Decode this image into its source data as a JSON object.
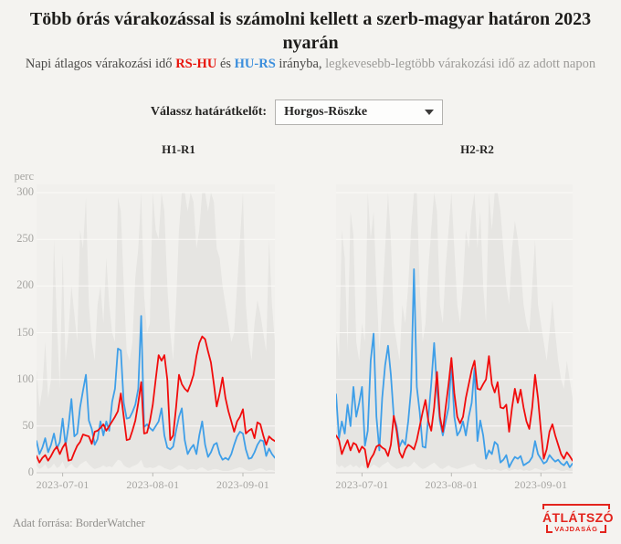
{
  "header": {
    "title": "Több órás várakozással is számolni kellett a szerb-magyar határon 2023 nyarán",
    "sub_prefix": "Napi átlagos várakozási idő ",
    "sub_rs_hu": "RS-HU",
    "sub_and": " és ",
    "sub_hu_rs": "HU-RS",
    "sub_direction": " irányba, ",
    "sub_gray": "legkevesebb-legtöbb várakozási idő az adott napon"
  },
  "controls": {
    "label": "Válassz határátkelőt:",
    "selected": "Horgos-Röszke"
  },
  "axes": {
    "y_unit": "perc",
    "y_ticks": [
      300,
      250,
      200,
      150,
      100,
      50,
      0
    ],
    "x_tick_labels": [
      "2023-07-01",
      "2023-08-01",
      "2023-09-01"
    ]
  },
  "footer": {
    "source": "Adat forrása: BorderWatcher",
    "logo_main": "ÁTLÁTSZÓ",
    "logo_sub": "VAJDASÁG"
  },
  "colors": {
    "red": "#f10c0c",
    "blue": "#3f9fe8",
    "subtitle_red": "#e8150d",
    "subtitle_blue": "#3b8edc",
    "band": "#e6e5e2",
    "plot_bg": "#f1f0ed",
    "grid": "#fbfaf7",
    "axis_line": "#d2d1ce",
    "tick": "#b9b8b5",
    "axis_text": "#a6a5a2",
    "page_bg": "#f4f3f0",
    "logo_red": "#e3241d"
  },
  "chart_data": [
    {
      "type": "line",
      "title": "H1-R1",
      "ylabel": "perc",
      "ylim": [
        0,
        300
      ],
      "grid": true,
      "legend_position": "none",
      "x_axis": {
        "tick_labels": [
          "2023-07-01",
          "2023-08-01",
          "2023-09-01"
        ],
        "tick_idx": [
          9,
          40,
          71
        ],
        "n_points": 83
      },
      "band": {
        "name": "legkevesebb-legtöbb várakozási idő (min-max sáv)",
        "min": [
          8,
          4,
          6,
          9,
          4,
          6,
          10,
          5,
          7,
          12,
          4,
          7,
          10,
          6,
          5,
          9,
          11,
          13,
          9,
          6,
          4,
          5,
          6,
          8,
          6,
          7,
          6,
          10,
          14,
          13,
          8,
          6,
          5,
          7,
          8,
          10,
          14,
          6,
          5,
          6,
          5,
          6,
          8,
          7,
          5,
          4,
          3,
          4,
          6,
          8,
          7,
          5,
          3,
          4,
          4,
          3,
          5,
          6,
          4,
          2,
          3,
          4,
          4,
          3,
          2,
          2,
          2,
          3,
          4,
          5,
          6,
          5,
          3,
          2,
          2,
          3,
          4,
          5,
          4,
          2,
          3,
          3,
          2
        ],
        "max": [
          110,
          70,
          90,
          140,
          80,
          100,
          250,
          160,
          90,
          235,
          120,
          150,
          200,
          170,
          140,
          260,
          240,
          295,
          180,
          140,
          120,
          180,
          200,
          160,
          230,
          180,
          150,
          140,
          295,
          280,
          200,
          130,
          120,
          140,
          210,
          240,
          300,
          190,
          150,
          160,
          300,
          260,
          250,
          300,
          280,
          200,
          150,
          120,
          180,
          260,
          300,
          300,
          280,
          300,
          290,
          240,
          260,
          300,
          300,
          280,
          300,
          290,
          240,
          230,
          200,
          180,
          160,
          140,
          150,
          200,
          250,
          300,
          180,
          140,
          120,
          160,
          185,
          170,
          150,
          130,
          250,
          180,
          140
        ]
      },
      "series": [
        {
          "name": "HU-RS átlag",
          "color_key": "blue",
          "values": [
            34,
            20,
            27,
            37,
            22,
            30,
            42,
            26,
            33,
            58,
            29,
            50,
            79,
            39,
            42,
            70,
            88,
            105,
            56,
            47,
            30,
            36,
            55,
            40,
            55,
            45,
            76,
            90,
            133,
            131,
            75,
            58,
            59,
            65,
            73,
            90,
            168,
            49,
            52,
            48,
            45,
            50,
            55,
            69,
            40,
            27,
            25,
            28,
            45,
            60,
            69,
            35,
            20,
            26,
            30,
            20,
            40,
            55,
            30,
            17,
            22,
            30,
            32,
            20,
            14,
            16,
            14,
            20,
            30,
            39,
            44,
            42,
            25,
            15,
            16,
            22,
            30,
            35,
            34,
            18,
            26,
            20,
            16
          ]
        },
        {
          "name": "RS-HU átlag",
          "color_key": "red",
          "values": [
            18,
            11,
            16,
            19,
            13,
            18,
            24,
            28,
            20,
            27,
            32,
            13,
            14,
            22,
            29,
            33,
            41,
            40,
            39,
            31,
            44,
            45,
            48,
            52,
            45,
            50,
            55,
            60,
            66,
            85,
            60,
            35,
            36,
            45,
            56,
            75,
            97,
            42,
            43,
            55,
            73,
            100,
            126,
            120,
            126,
            100,
            35,
            40,
            70,
            105,
            95,
            90,
            87,
            95,
            105,
            125,
            139,
            146,
            143,
            130,
            118,
            95,
            71,
            85,
            102,
            80,
            66,
            55,
            44,
            55,
            60,
            68,
            42,
            45,
            47,
            37,
            54,
            52,
            40,
            30,
            39,
            36,
            34
          ]
        }
      ]
    },
    {
      "type": "line",
      "title": "H2-R2",
      "ylabel": "perc",
      "ylim": [
        0,
        300
      ],
      "grid": true,
      "legend_position": "none",
      "x_axis": {
        "tick_labels": [
          "2023-07-01",
          "2023-08-01",
          "2023-09-01"
        ],
        "tick_idx": [
          9,
          40,
          71
        ],
        "n_points": 83
      },
      "band": {
        "name": "legkevesebb-legtöbb várakozási idő (min-max sáv)",
        "min": [
          10,
          6,
          8,
          5,
          7,
          9,
          6,
          8,
          5,
          8,
          5,
          3,
          6,
          9,
          7,
          5,
          8,
          10,
          12,
          8,
          6,
          4,
          5,
          6,
          7,
          6,
          8,
          12,
          9,
          6,
          4,
          5,
          7,
          9,
          11,
          8,
          5,
          4,
          6,
          8,
          6,
          5,
          4,
          5,
          6,
          7,
          8,
          9,
          10,
          6,
          5,
          4,
          3,
          4,
          3,
          4,
          3,
          2,
          3,
          4,
          2,
          3,
          4,
          3,
          4,
          2,
          3,
          2,
          3,
          5,
          4,
          3,
          2,
          3,
          4,
          5,
          4,
          3,
          2,
          2,
          3,
          2,
          2
        ],
        "max": [
          150,
          120,
          260,
          230,
          130,
          280,
          255,
          140,
          120,
          160,
          140,
          300,
          250,
          280,
          200,
          130,
          180,
          240,
          300,
          250,
          160,
          140,
          120,
          180,
          160,
          200,
          260,
          300,
          300,
          200,
          140,
          160,
          220,
          260,
          300,
          280,
          180,
          160,
          220,
          260,
          300,
          240,
          180,
          160,
          200,
          260,
          240,
          280,
          300,
          240,
          280,
          200,
          160,
          300,
          260,
          300,
          300,
          280,
          240,
          200,
          180,
          240,
          270,
          250,
          220,
          180,
          160,
          150,
          200,
          250,
          180,
          160,
          140,
          120,
          150,
          185,
          150,
          120,
          100,
          90,
          120,
          100,
          80
        ]
      },
      "series": [
        {
          "name": "HU-RS átlag",
          "color_key": "blue",
          "values": [
            84,
            37,
            55,
            42,
            73,
            50,
            92,
            60,
            75,
            92,
            29,
            45,
            120,
            149,
            60,
            24,
            80,
            115,
            136,
            105,
            60,
            50,
            28,
            35,
            30,
            55,
            89,
            218,
            92,
            65,
            28,
            27,
            60,
            95,
            139,
            90,
            55,
            40,
            55,
            70,
            117,
            60,
            40,
            45,
            55,
            40,
            60,
            75,
            112,
            34,
            56,
            40,
            15,
            24,
            20,
            33,
            30,
            11,
            14,
            19,
            6,
            12,
            17,
            15,
            18,
            8,
            10,
            12,
            17,
            34,
            20,
            15,
            10,
            12,
            19,
            15,
            12,
            14,
            10,
            8,
            12,
            6,
            10
          ]
        },
        {
          "name": "RS-HU átlag",
          "color_key": "red",
          "values": [
            40,
            35,
            20,
            28,
            35,
            24,
            32,
            30,
            22,
            28,
            25,
            6,
            15,
            20,
            28,
            30,
            27,
            25,
            18,
            30,
            61,
            45,
            22,
            16,
            25,
            30,
            28,
            25,
            35,
            50,
            65,
            78,
            55,
            45,
            70,
            108,
            60,
            44,
            70,
            95,
            123,
            85,
            60,
            53,
            60,
            80,
            95,
            110,
            120,
            90,
            89,
            95,
            100,
            125,
            95,
            86,
            97,
            70,
            69,
            73,
            44,
            70,
            90,
            75,
            89,
            70,
            55,
            47,
            70,
            105,
            80,
            45,
            15,
            25,
            44,
            52,
            40,
            30,
            20,
            15,
            22,
            18,
            13
          ]
        }
      ]
    }
  ]
}
